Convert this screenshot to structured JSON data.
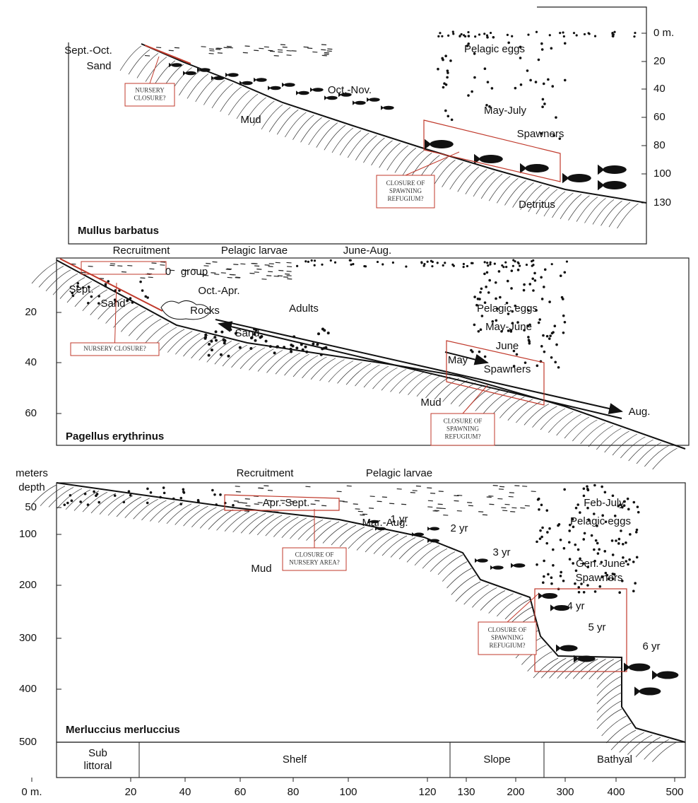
{
  "panels": [
    {
      "species": "Mullus barbatus",
      "depth_ticks": [
        "0 m.",
        "20",
        "40",
        "60",
        "80",
        "100",
        "130"
      ],
      "labels": [
        "Sept.-Oct.",
        "Sand",
        "Oct.-Nov.",
        "Mud",
        "Pelagic eggs",
        "May-July",
        "Spawners",
        "Detritus"
      ],
      "closures": [
        [
          "NURSERY",
          "CLOSURE?"
        ],
        [
          "CLOSURE OF",
          "SPAWNING",
          "REFUGIUM?"
        ]
      ]
    },
    {
      "species": "Pagellus erythrinus",
      "depth_ticks": [
        "20",
        "40",
        "60"
      ],
      "labels": [
        "Recruitment",
        "Pelagic larvae",
        "June-Aug.",
        "0",
        "group",
        "Sept.",
        "Sand",
        "Rocks",
        "Oct.-Apr.",
        "Adults",
        "Sand",
        "Pelagic eggs",
        "May-June",
        "June",
        "May",
        "Spawners",
        "Mud",
        "Aug."
      ],
      "closures": [
        [
          "NURSERY CLOSURE?"
        ],
        [
          "CLOSURE OF",
          "SPAWNING",
          "REFUGIUM?"
        ]
      ]
    },
    {
      "species": "Merluccius merluccius",
      "depth_title": [
        "meters",
        "depth"
      ],
      "depth_ticks": [
        "50",
        "100",
        "200",
        "300",
        "400",
        "500"
      ],
      "labels": [
        "Recruitment",
        "Pelagic larvae",
        "Apr.-Sept.",
        "Mar.-Aug.",
        "Mud",
        "1 yr",
        "2 yr",
        "3 yr",
        "Feb-July",
        "Pelagic eggs",
        "Gen.-June",
        "Spawners",
        "4 yr",
        "5 yr",
        "6 yr"
      ],
      "closures": [
        [
          "CLOSURE OF",
          "NURSERY AREA?"
        ],
        [
          "CLOSURE OF",
          "SPAWNING",
          "REFUGIUM?"
        ]
      ]
    }
  ],
  "zones": [
    [
      "Sub",
      "littoral"
    ],
    [
      "Shelf"
    ],
    [
      "Slope"
    ],
    [
      "Bathyal"
    ]
  ],
  "distance_ticks": [
    "0 m.",
    "20",
    "40",
    "60",
    "80",
    "100",
    "120",
    "130",
    "200",
    "300",
    "400",
    "500"
  ]
}
